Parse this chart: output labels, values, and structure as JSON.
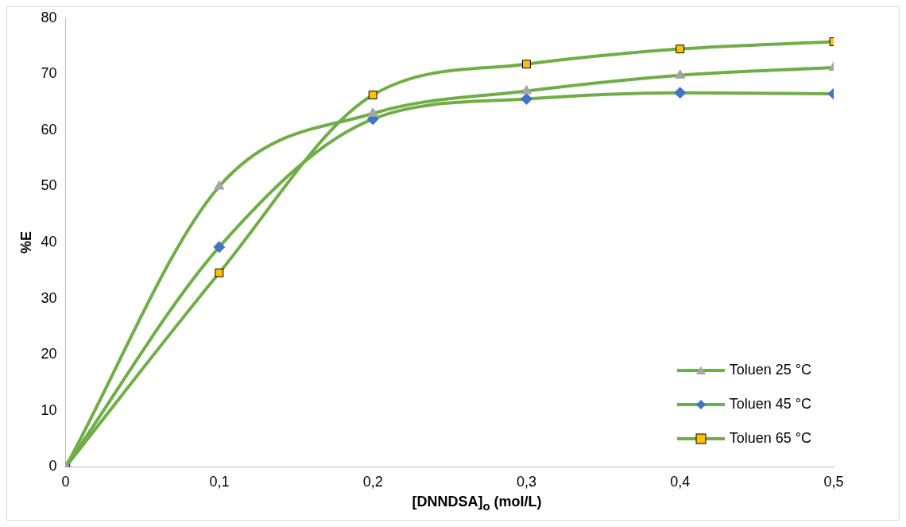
{
  "chart_data": {
    "type": "line",
    "xlabel": "[DNNDSA]$_{o}$ (mol/L)",
    "ylabel": "%E",
    "x": [
      0,
      0.1,
      0.2,
      0.3,
      0.4,
      0.5
    ],
    "xlim": [
      0,
      0.5
    ],
    "xticks": [
      0,
      {
        "value": 0.1,
        "label": "0,1"
      },
      {
        "value": 0.2,
        "label": "0,2"
      },
      {
        "value": 0.3,
        "label": "0,3"
      },
      {
        "value": 0.4,
        "label": "0,4"
      },
      {
        "value": 0.5,
        "label": "0,5"
      }
    ],
    "ylim": [
      0,
      80
    ],
    "yticks": [
      0,
      10,
      20,
      30,
      40,
      50,
      60,
      70,
      80
    ],
    "grid": false,
    "legend": "bottom right",
    "line_style": "solid",
    "series": [
      {
        "name": "Toluen 25 °C",
        "color": "#70ad47",
        "marker": "triangle",
        "colors": [
          "#a5a5a5",
          "#a5a5a5",
          "#a5a5a5",
          "#a5a5a5",
          "#a5a5a5",
          "#a5a5a5"
        ],
        "values": [
          0,
          50,
          63,
          67,
          69.8,
          71.2
        ]
      },
      {
        "name": "Toluen 45 °C",
        "color": "#70ad47",
        "marker": "diamond",
        "colors": [
          "#4472c4",
          "#4472c4",
          "#4472c4",
          "#4472c4",
          "#4472c4",
          "#4472c4"
        ],
        "values": [
          0,
          39.2,
          62,
          65.6,
          66.7,
          66.5
        ]
      },
      {
        "name": "Toluen 65 °C",
        "color": "#70ad47",
        "marker": "square",
        "colors": [
          "#ffc000",
          "#ffc000",
          "#ffc000",
          "#ffc000",
          "#ffc000",
          "#ffc000"
        ],
        "values": [
          0,
          34.6,
          66.3,
          71.8,
          74.5,
          75.8
        ]
      }
    ]
  }
}
